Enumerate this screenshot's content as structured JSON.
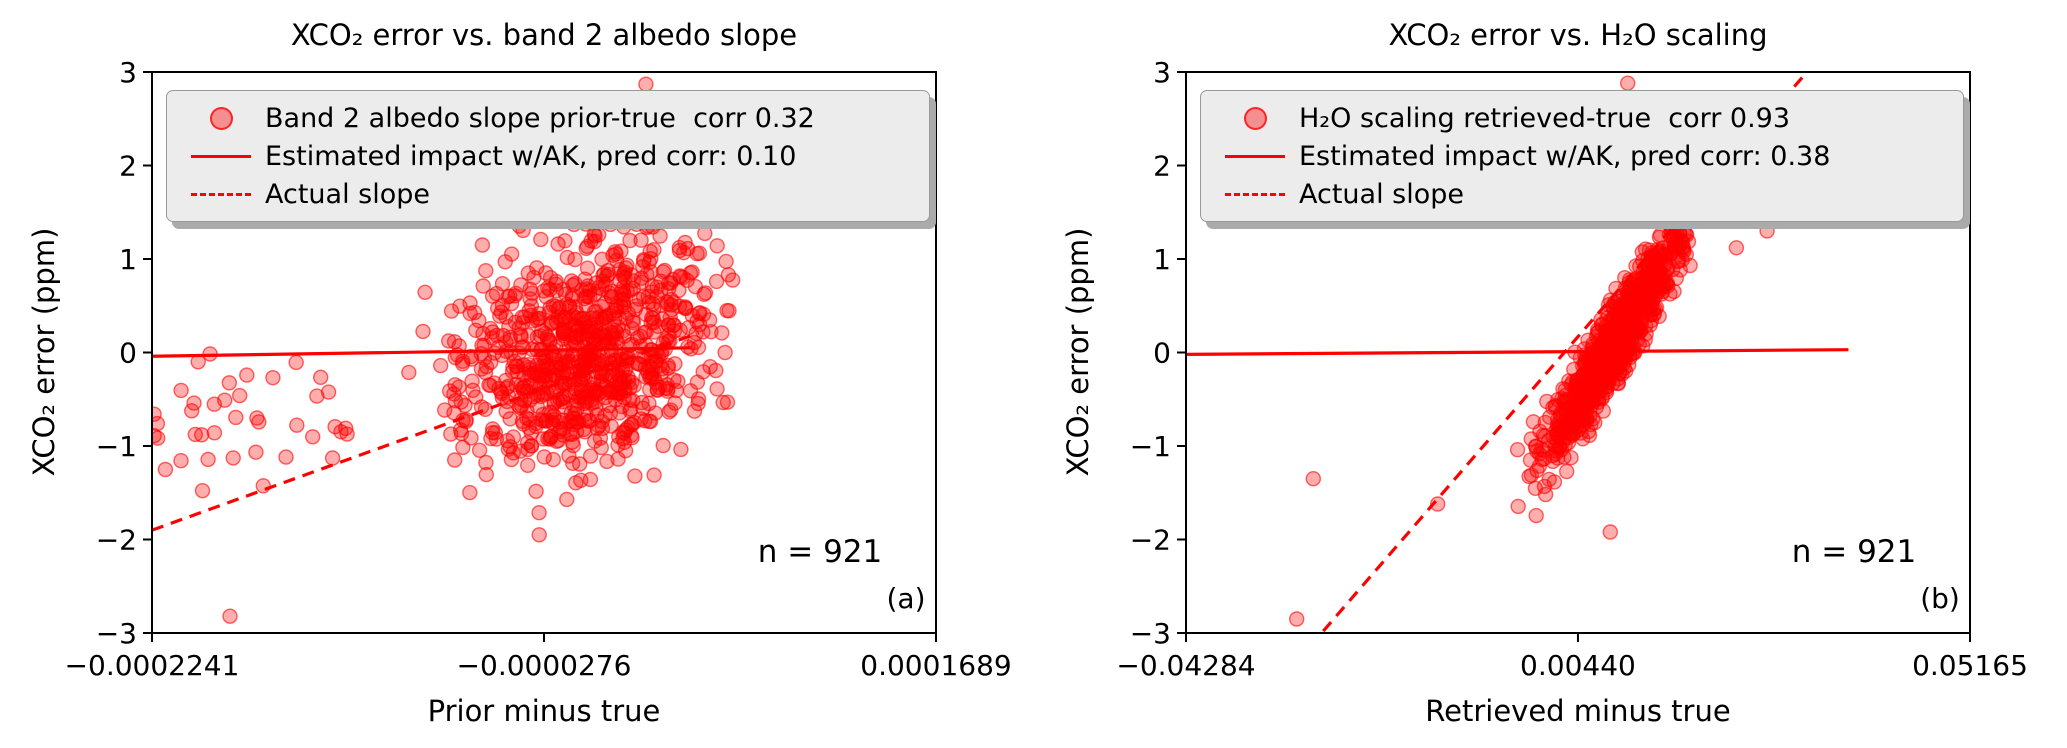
{
  "figure": {
    "background": "#ffffff",
    "accent_color": "#ff0000",
    "axes_color": "#000000",
    "legend_background": "#ececec"
  },
  "chart_data": [
    {
      "type": "scatter",
      "panel_label": "(a)",
      "title": "XCO₂ error vs. band 2 albedo slope",
      "xlabel": "Prior minus true",
      "ylabel": "XCO₂ error (ppm)",
      "n": 921,
      "n_label": "n = 921",
      "xlim": [
        -0.0002241,
        0.0001689
      ],
      "ylim": [
        -3,
        3
      ],
      "x_ticks": [
        -0.0002241,
        -2.76e-05,
        0.0001689
      ],
      "x_tick_labels": [
        "−0.0002241",
        "−0.0000276",
        "0.0001689"
      ],
      "y_ticks": [
        3,
        2,
        1,
        0,
        -1,
        -2,
        -3
      ],
      "y_tick_labels": [
        "3",
        "2",
        "1",
        "0",
        "−1",
        "−2",
        "−3"
      ],
      "grid": false,
      "legend_position": "upper-left",
      "legend": [
        {
          "handle": "scatter-dot",
          "label": "Band 2 albedo slope prior-true  corr 0.32"
        },
        {
          "handle": "solid-line",
          "label": "Estimated impact w/AK, pred corr: 0.10"
        },
        {
          "handle": "dashed-line",
          "label": "Actual slope"
        }
      ],
      "lines": {
        "estimated_impact": {
          "style": "solid",
          "points": [
            [
              -0.0002241,
              -0.04
            ],
            [
              4.6e-05,
              0.05
            ]
          ]
        },
        "actual_slope": {
          "style": "dashed",
          "points": [
            [
              -0.0002241,
              -1.9
            ],
            [
              5e-05,
              0.21
            ]
          ]
        }
      },
      "scatter": {
        "color": "#ff0000",
        "alpha": 0.32,
        "marker_radius_px": 7,
        "seed": 7,
        "clusters": [
          {
            "n": 874,
            "x_mean": -5e-06,
            "x_sd": 3.2e-05,
            "t_clip": [
              -3.0,
              2.3
            ],
            "y_mean": 0.05,
            "y_sd": 0.65,
            "corr": 0.32,
            "e_clip": [
              -2.7,
              2.7
            ]
          },
          {
            "n": 40,
            "dist": "uniform-x",
            "x_range": [
              -0.000224,
              -0.00012
            ],
            "y_mean": -0.72,
            "y_sd": 0.38,
            "e_clip": [
              -2.0,
              2.0
            ]
          }
        ],
        "outliers": [
          [
            2.35e-05,
            2.87
          ],
          [
            5e-06,
            2.42
          ],
          [
            1.6e-05,
            2.38
          ],
          [
            -0.000185,
            -2.82
          ],
          [
            4e-05,
            1.95
          ],
          [
            -3e-05,
            -1.95
          ],
          [
            5.2e-05,
            1.7
          ]
        ]
      }
    },
    {
      "type": "scatter",
      "panel_label": "(b)",
      "title": "XCO₂ error vs. H₂O scaling",
      "xlabel": "Retrieved minus true",
      "ylabel": "XCO₂ error (ppm)",
      "n": 921,
      "n_label": "n = 921",
      "xlim": [
        -0.04284,
        0.05165
      ],
      "ylim": [
        -3,
        3
      ],
      "x_ticks": [
        -0.04284,
        0.0044,
        0.05165
      ],
      "x_tick_labels": [
        "−0.04284",
        "0.00440",
        "0.05165"
      ],
      "y_ticks": [
        3,
        2,
        1,
        0,
        -1,
        -2,
        -3
      ],
      "y_tick_labels": [
        "3",
        "2",
        "1",
        "0",
        "−1",
        "−2",
        "−3"
      ],
      "grid": false,
      "legend_position": "upper-left",
      "legend": [
        {
          "handle": "scatter-dot",
          "label": "H₂O scaling retrieved-true  corr 0.93"
        },
        {
          "handle": "solid-line",
          "label": "Estimated impact w/AK, pred corr: 0.38"
        },
        {
          "handle": "dashed-line",
          "label": "Actual slope"
        }
      ],
      "lines": {
        "estimated_impact": {
          "style": "solid",
          "points": [
            [
              -0.04284,
              -0.02
            ],
            [
              0.037,
              0.03
            ]
          ]
        },
        "actual_slope": {
          "style": "dashed",
          "points": [
            [
              -0.0263,
              -2.98
            ],
            [
              0.032,
              3.0
            ]
          ]
        }
      },
      "scatter": {
        "color": "#ff0000",
        "alpha": 0.32,
        "marker_radius_px": 7,
        "seed": 21,
        "clusters": [
          {
            "n": 911,
            "x_mean": 0.009,
            "x_sd": 0.0042,
            "t_clip": [
              -2.9,
              2.9
            ],
            "y_mean": 0.12,
            "y_sd": 0.624,
            "corr": 0.93,
            "e_clip": [
              -2.5,
              2.5
            ]
          }
        ],
        "outliers": [
          [
            -0.0295,
            -2.85
          ],
          [
            -0.0275,
            -1.35
          ],
          [
            -0.0125,
            -1.62
          ],
          [
            0.0083,
            -1.92
          ],
          [
            0.0272,
            1.3
          ],
          [
            0.0235,
            1.12
          ],
          [
            0.0104,
            2.88
          ],
          [
            0.0085,
            2.6
          ],
          [
            0.0122,
            2.42
          ],
          [
            0.014,
            1.68
          ]
        ]
      }
    }
  ]
}
